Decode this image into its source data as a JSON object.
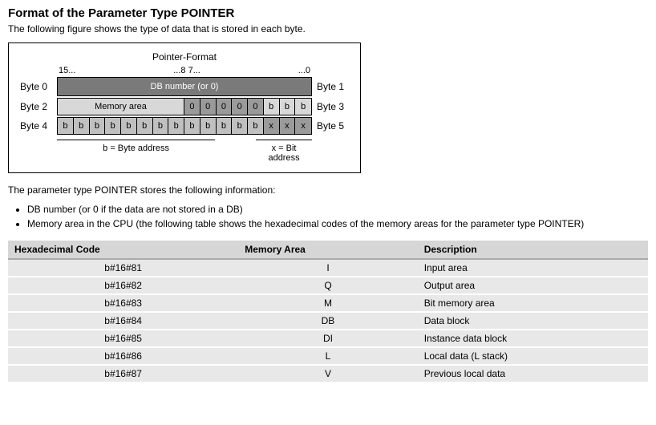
{
  "heading": "Format of the Parameter Type POINTER",
  "intro": "The following figure shows the type of data that is stored in each byte.",
  "figure": {
    "title": "Pointer-Format",
    "bit_labels": {
      "left": "15...",
      "mid": "...8 7...",
      "right": "...0"
    },
    "rows": [
      {
        "left": "Byte 0",
        "right": "Byte 1",
        "span_label": "DB number (or 0)"
      },
      {
        "left": "Byte 2",
        "right": "Byte 3",
        "mem_label": "Memory area",
        "cells8_15": [
          "0",
          "0",
          "0",
          "0",
          "0",
          "b",
          "b",
          "b"
        ]
      },
      {
        "left": "Byte 4",
        "right": "Byte 5",
        "cells0_7": [
          "b",
          "b",
          "b",
          "b",
          "b",
          "b",
          "b",
          "b"
        ],
        "cells8_15": [
          "b",
          "b",
          "b",
          "b",
          "b",
          "x",
          "x",
          "x"
        ]
      }
    ],
    "legend_b": "b = Byte address",
    "legend_x": "x = Bit address"
  },
  "para2": "The parameter type POINTER stores the following information:",
  "bullets": [
    "DB number (or 0 if the data are not stored in a DB)",
    "Memory area in the CPU (the following table shows the hexadecimal codes of the memory areas for the parameter type POINTER)"
  ],
  "table": {
    "headers": [
      "Hexadecimal Code",
      "Memory Area",
      "Description"
    ],
    "rows": [
      [
        "b#16#81",
        "I",
        "Input area"
      ],
      [
        "b#16#82",
        "Q",
        "Output area"
      ],
      [
        "b#16#83",
        "M",
        "Bit memory area"
      ],
      [
        "b#16#84",
        "DB",
        "Data block"
      ],
      [
        "b#16#85",
        "DI",
        "Instance data block"
      ],
      [
        "b#16#86",
        "L",
        "Local data (L stack)"
      ],
      [
        "b#16#87",
        "V",
        "Previous local data"
      ]
    ]
  }
}
